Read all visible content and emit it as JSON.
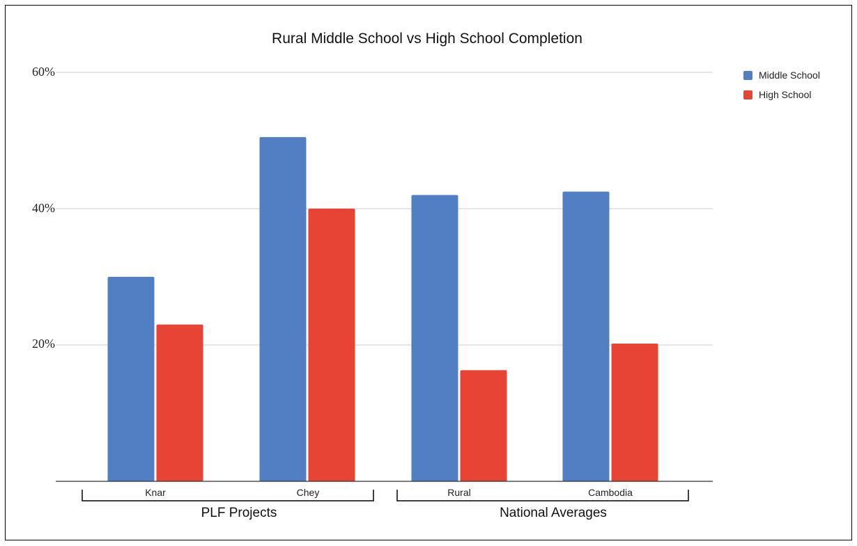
{
  "chart_data": {
    "type": "bar",
    "title": "Rural Middle School vs High School Completion",
    "categories": [
      "Knar",
      "Chey",
      "Rural",
      "Cambodia"
    ],
    "series": [
      {
        "name": "Middle School",
        "color": "#527ec4",
        "values": [
          30,
          50.5,
          42,
          42.5
        ]
      },
      {
        "name": "High School",
        "color": "#e84435",
        "values": [
          23,
          40,
          16.3,
          20.2
        ]
      }
    ],
    "y_ticks": [
      "20%",
      "40%",
      "60%"
    ],
    "ylim": [
      0,
      60
    ],
    "groups": [
      {
        "label": "PLF Projects",
        "categories": [
          "Knar",
          "Chey"
        ]
      },
      {
        "label": "National Averages",
        "categories": [
          "Rural",
          "Cambodia"
        ]
      }
    ],
    "legend_position": "top-right",
    "grid": true
  }
}
